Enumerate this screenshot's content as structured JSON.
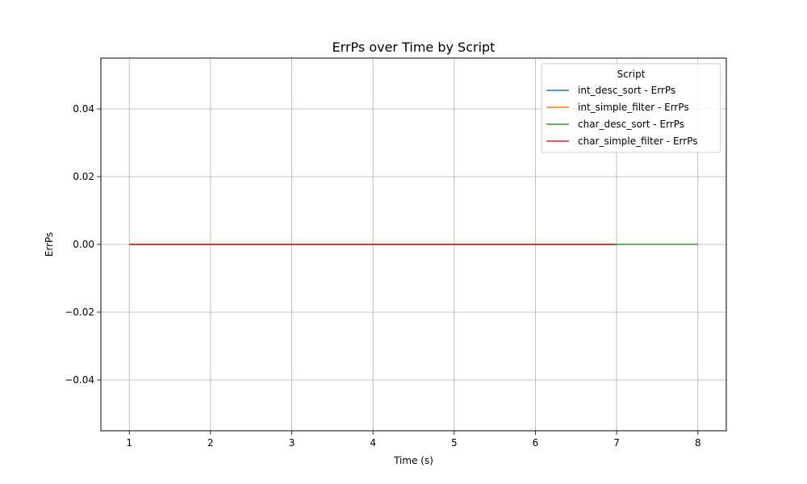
{
  "chart_data": {
    "type": "line",
    "title": "ErrPs over Time by Script",
    "xlabel": "Time (s)",
    "ylabel": "ErrPs",
    "xlim": [
      0.65,
      8.35
    ],
    "ylim": [
      -0.055,
      0.055
    ],
    "xticks": [
      1,
      2,
      3,
      4,
      5,
      6,
      7,
      8
    ],
    "yticks": [
      -0.04,
      -0.02,
      0.0,
      0.02,
      0.04
    ],
    "ytick_labels": [
      "−0.04",
      "−0.02",
      "0.00",
      "0.02",
      "0.04"
    ],
    "grid": true,
    "legend": {
      "title": "Script",
      "placement": "top-right"
    },
    "series": [
      {
        "name": "int_desc_sort - ErrPs",
        "color": "#1f77b4",
        "x": [
          1,
          2,
          3,
          4,
          5,
          6,
          7
        ],
        "y": [
          0,
          0,
          0,
          0,
          0,
          0,
          0
        ]
      },
      {
        "name": "int_simple_filter - ErrPs",
        "color": "#ff7f0e",
        "x": [
          1,
          2,
          3,
          4,
          5,
          6,
          7
        ],
        "y": [
          0,
          0,
          0,
          0,
          0,
          0,
          0
        ]
      },
      {
        "name": "char_desc_sort - ErrPs",
        "color": "#2ca02c",
        "x": [
          1,
          2,
          3,
          4,
          5,
          6,
          7,
          8
        ],
        "y": [
          0,
          0,
          0,
          0,
          0,
          0,
          0,
          0
        ]
      },
      {
        "name": "char_simple_filter - ErrPs",
        "color": "#d62728",
        "x": [
          1,
          2,
          3,
          4,
          5,
          6,
          7
        ],
        "y": [
          0,
          0,
          0,
          0,
          0,
          0,
          0
        ]
      }
    ]
  }
}
